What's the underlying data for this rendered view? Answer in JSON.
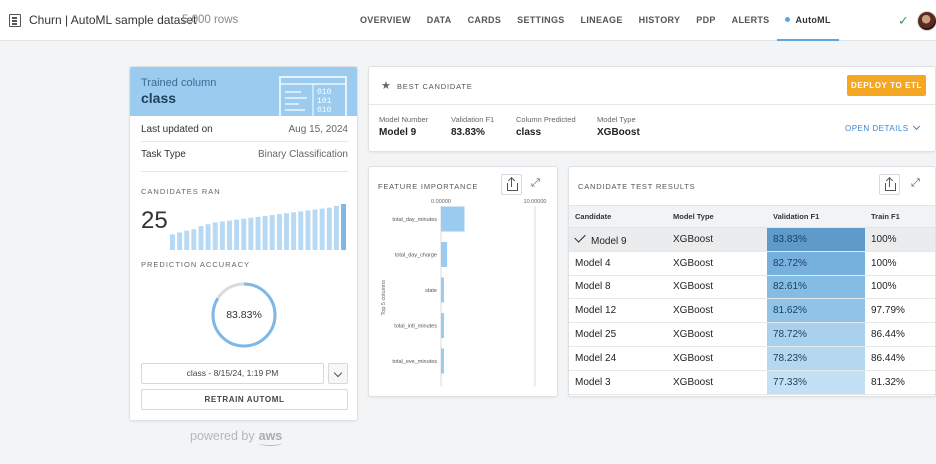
{
  "header": {
    "app_title": "Churn | AutoML sample dataset",
    "row_count": "5,000 rows",
    "tabs": [
      {
        "label": "OVERVIEW"
      },
      {
        "label": "DATA"
      },
      {
        "label": "CARDS"
      },
      {
        "label": "SETTINGS"
      },
      {
        "label": "LINEAGE"
      },
      {
        "label": "HISTORY"
      },
      {
        "label": "PDP"
      },
      {
        "label": "ALERTS"
      },
      {
        "label": "AutoML",
        "active": true
      }
    ],
    "status_icon": "check-icon",
    "accent_color": "#5aa7e0"
  },
  "summary": {
    "trained_column_label": "Trained column",
    "trained_column_value": "class",
    "last_updated_label": "Last updated on",
    "last_updated_value": "Aug 15, 2024",
    "task_type_label": "Task Type",
    "task_type_value": "Binary Classification",
    "candidates_ran_label": "CANDIDATES RAN",
    "candidates_ran_value": "25",
    "candidate_scores": [
      0.34,
      0.38,
      0.42,
      0.45,
      0.52,
      0.56,
      0.6,
      0.62,
      0.64,
      0.66,
      0.68,
      0.7,
      0.72,
      0.74,
      0.76,
      0.78,
      0.8,
      0.82,
      0.84,
      0.86,
      0.88,
      0.9,
      0.92,
      0.96,
      1.0
    ],
    "prediction_accuracy_label": "PREDICTION ACCURACY",
    "prediction_accuracy_value": "83.83%",
    "prediction_accuracy_fraction": 0.8383,
    "run_select_value": "class - 8/15/24, 1:19 PM",
    "retrain_label": "RETRAIN AUTOML"
  },
  "powered_by": {
    "prefix": "powered by",
    "brand": "aws"
  },
  "best_candidate": {
    "title": "BEST CANDIDATE",
    "deploy_label": "DEPLOY TO ETL",
    "deploy_color": "#f5a623",
    "metrics": [
      {
        "label": "Model Number",
        "value": "Model 9"
      },
      {
        "label": "Validation F1",
        "value": "83.83%"
      },
      {
        "label": "Column Predicted",
        "value": "class"
      },
      {
        "label": "Model Type",
        "value": "XGBoost"
      }
    ],
    "open_details_label": "OPEN DETAILS"
  },
  "feature_importance": {
    "title": "FEATURE IMPORTANCE",
    "share_icon": "share-icon",
    "expand_icon": "expand-icon"
  },
  "chart_data": {
    "type": "bar",
    "orientation": "horizontal",
    "categories": [
      "total_day_minutes",
      "total_day_charge",
      "state",
      "total_intl_minutes",
      "total_eve_minutes"
    ],
    "values": [
      2.5,
      0.65,
      0.32,
      0.32,
      0.32
    ],
    "xlim": [
      0,
      10
    ],
    "xticks": [
      "0.00000",
      "10.00000"
    ],
    "ylabel": "Top 5 columns",
    "bar_color": "#9bcbef"
  },
  "candidate_results": {
    "title": "CANDIDATE TEST RESULTS",
    "columns": [
      "Candidate",
      "Model Type",
      "Validation F1",
      "Train F1"
    ],
    "rows": [
      {
        "candidate": "Model 9",
        "model_type": "XGBoost",
        "validation_f1": "83.83%",
        "train_f1": "100%",
        "selected": true
      },
      {
        "candidate": "Model 4",
        "model_type": "XGBoost",
        "validation_f1": "82.72%",
        "train_f1": "100%"
      },
      {
        "candidate": "Model 8",
        "model_type": "XGBoost",
        "validation_f1": "82.61%",
        "train_f1": "100%"
      },
      {
        "candidate": "Model 12",
        "model_type": "XGBoost",
        "validation_f1": "81.62%",
        "train_f1": "97.79%"
      },
      {
        "candidate": "Model 25",
        "model_type": "XGBoost",
        "validation_f1": "78.72%",
        "train_f1": "86.44%"
      },
      {
        "candidate": "Model 24",
        "model_type": "XGBoost",
        "validation_f1": "78.23%",
        "train_f1": "86.44%"
      },
      {
        "candidate": "Model 3",
        "model_type": "XGBoost",
        "validation_f1": "77.33%",
        "train_f1": "81.32%"
      }
    ],
    "heat_colors": [
      "#5e9bcb",
      "#76b0dc",
      "#84bce3",
      "#8fc4e8",
      "#a9d1ef",
      "#b5d8f1",
      "#c4e0f5"
    ]
  }
}
